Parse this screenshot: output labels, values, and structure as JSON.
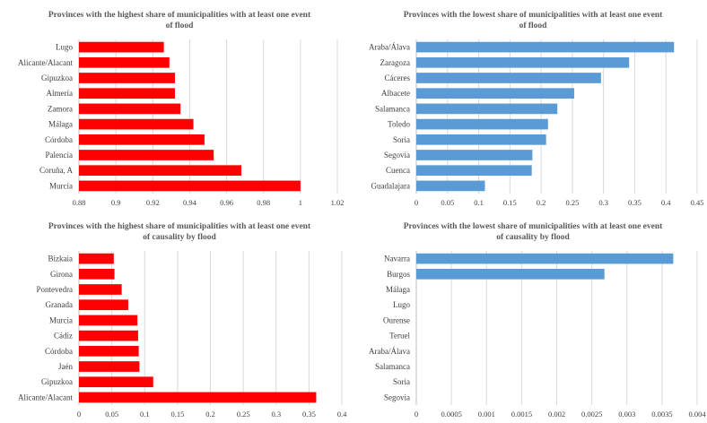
{
  "chart_data": [
    {
      "type": "bar",
      "orientation": "horizontal",
      "title": "Provinces with the highest share of municipalities with  at least one event of flood",
      "categories": [
        "Lugo",
        "Alicante/Alacant",
        "Gipuzkoa",
        "Almería",
        "Zamora",
        "Málaga",
        "Córdoba",
        "Palencia",
        "Coruña, A",
        "Murcia"
      ],
      "values": [
        0.926,
        0.929,
        0.932,
        0.932,
        0.935,
        0.942,
        0.948,
        0.953,
        0.968,
        1.0
      ],
      "xlim": [
        0.88,
        1.02
      ],
      "ticks": [
        "0.88",
        "0.9",
        "0.92",
        "0.94",
        "0.96",
        "0.98",
        "1",
        "1.02"
      ],
      "grid": true,
      "color": "#ff0000"
    },
    {
      "type": "bar",
      "orientation": "horizontal",
      "title": "Provinces with the lowest share of municipalities with at least one event of flood",
      "categories": [
        "Araba/Álava",
        "Zaragoza",
        "Cáceres",
        "Albacete",
        "Salamanca",
        "Toledo",
        "Soria",
        "Segovia",
        "Cuenca",
        "Guadalajara"
      ],
      "values": [
        0.413,
        0.341,
        0.296,
        0.253,
        0.226,
        0.211,
        0.208,
        0.186,
        0.185,
        0.11
      ],
      "xlim": [
        0,
        0.45
      ],
      "ticks": [
        "0",
        "0.05",
        "0.1",
        "0.15",
        "0.2",
        "0.25",
        "0.3",
        "0.35",
        "0.4",
        "0.45"
      ],
      "grid": true,
      "color": "#5b9bd5"
    },
    {
      "type": "bar",
      "orientation": "horizontal",
      "title": "Provinces with the highest share of municipalities with  at least one event of causality by flood",
      "categories": [
        "Bizkaia",
        "Girona",
        "Pontevedra",
        "Granada",
        "Murcia",
        "Cádiz",
        "Córdoba",
        "Jaén",
        "Gipuzkoa",
        "Alicante/Alacant"
      ],
      "values": [
        0.053,
        0.054,
        0.065,
        0.075,
        0.089,
        0.09,
        0.091,
        0.092,
        0.113,
        0.361
      ],
      "xlim": [
        0,
        0.4
      ],
      "ticks": [
        "0",
        "0.05",
        "0.1",
        "0.15",
        "0.2",
        "0.25",
        "0.3",
        "0.35",
        "0.4"
      ],
      "grid": true,
      "color": "#ff0000"
    },
    {
      "type": "bar",
      "orientation": "horizontal",
      "title": "Provinces with the lowest share of municipalities with at least one event of causality by flood",
      "categories": [
        "Navarra",
        "Burgos",
        "Málaga",
        "Lugo",
        "Ourense",
        "Teruel",
        "Araba/Álava",
        "Salamanca",
        "Soria",
        "Segovia"
      ],
      "values": [
        0.00366,
        0.00268,
        0,
        0,
        0,
        0,
        0,
        0,
        0,
        0
      ],
      "xlim": [
        0,
        0.004
      ],
      "ticks": [
        "0",
        "0.0005",
        "0.001",
        "0.0015",
        "0.002",
        "0.0025",
        "0.003",
        "0.0035",
        "0.004"
      ],
      "grid": true,
      "color": "#5b9bd5"
    }
  ]
}
